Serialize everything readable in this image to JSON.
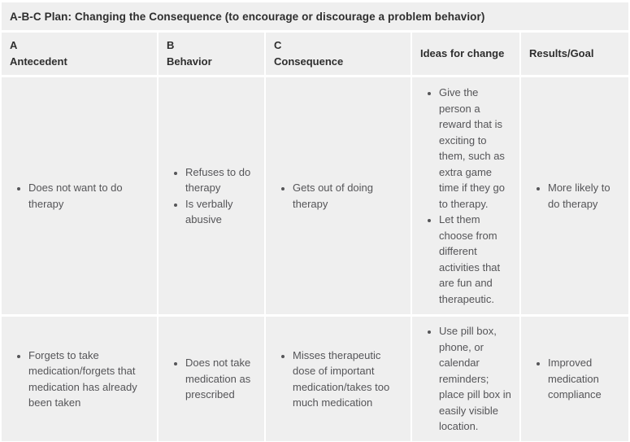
{
  "title": "A-B-C Plan: Changing the Consequence (to encourage or discourage a problem behavior)",
  "columns": [
    {
      "id": "antecedent",
      "label": "A\nAntecedent"
    },
    {
      "id": "behavior",
      "label": "B\nBehavior"
    },
    {
      "id": "consequence",
      "label": "C\nConsequence"
    },
    {
      "id": "ideas",
      "label": "Ideas for change"
    },
    {
      "id": "results",
      "label": "Results/Goal"
    }
  ],
  "rows": [
    {
      "antecedent": [
        "Does not want to do therapy"
      ],
      "behavior": [
        "Refuses to do therapy",
        "Is verbally abusive"
      ],
      "consequence": [
        "Gets out of doing therapy"
      ],
      "ideas": [
        "Give the person a reward that is exciting to them, such as extra game time if they go to therapy.",
        "Let them choose from different activities that are fun and therapeutic."
      ],
      "results": [
        "More likely to do therapy"
      ]
    },
    {
      "antecedent": [
        "Forgets to take medication/forgets that medication has already been taken"
      ],
      "behavior": [
        "Does not take medication as prescribed"
      ],
      "consequence": [
        "Misses therapeutic dose of important medication/takes too much medication"
      ],
      "ideas": [
        "Use pill box, phone, or calendar reminders; place pill box in easily visible location."
      ],
      "results": [
        "Improved medication compliance"
      ]
    }
  ],
  "colors": {
    "cell_background": "#efefef",
    "gap_color": "#ffffff",
    "heading_text": "#2e2e2e",
    "body_text": "#555558"
  }
}
